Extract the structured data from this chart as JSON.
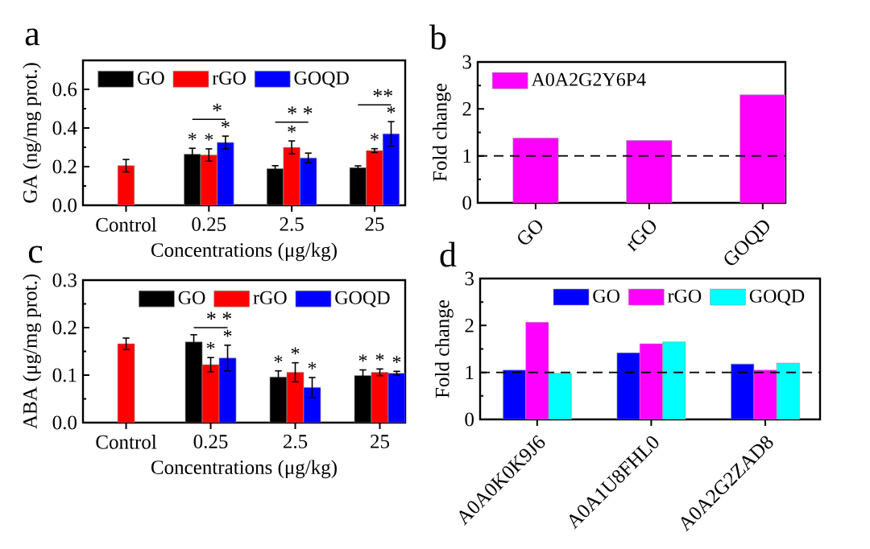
{
  "chart_data": [
    {
      "type": "bar",
      "categories": [
        "Control",
        "0.25",
        "2.5",
        "25"
      ],
      "xlabel": "Concentrations (μg/kg)",
      "ylabel": "GA (ng/mg prot.)",
      "ylim": [
        0,
        0.75
      ],
      "yticks": [
        {
          "value": 0,
          "label": "0.0"
        },
        0.2,
        0.4,
        0.6
      ],
      "legend": "top left",
      "series": [
        {
          "name": "GO",
          "color": "#000000",
          "values": [
            null,
            0.265,
            0.19,
            0.195
          ],
          "errors": [
            null,
            0.03,
            0.015,
            0.009
          ],
          "value_labels": [
            null,
            "*",
            null,
            null
          ]
        },
        {
          "name": "rGO",
          "color": "#ff0000",
          "values": [
            0.205,
            0.26,
            0.3,
            0.283
          ],
          "errors": [
            0.032,
            0.032,
            0.033,
            0.01
          ],
          "value_labels": [
            null,
            "*",
            "*",
            "*"
          ]
        },
        {
          "name": "GOQD",
          "color": "#0000ff",
          "values": [
            null,
            0.325,
            0.245,
            0.37
          ],
          "errors": [
            null,
            0.033,
            0.025,
            0.063
          ],
          "value_labels": [
            null,
            "*",
            null,
            "*"
          ]
        }
      ],
      "annotations": [
        "a",
        "*",
        "* *",
        "**"
      ]
    },
    {
      "type": "bar",
      "categories": [
        "GO",
        "rGO",
        "GOQD"
      ],
      "ylabel": "Fold change",
      "ylim": [
        0,
        3
      ],
      "yticks": [
        0,
        1,
        2,
        3
      ],
      "legend": "top left",
      "series": [
        {
          "name": "A0A2G2Y6P4",
          "color": "#ff00ff",
          "values": [
            1.38,
            1.33,
            2.3
          ]
        }
      ],
      "ref_lines": [
        {
          "axis": "y",
          "value": 1,
          "line_style": "dashed"
        }
      ],
      "annotations": [
        "b"
      ]
    },
    {
      "type": "bar",
      "categories": [
        "Control",
        "0.25",
        "2.5",
        "25"
      ],
      "xlabel": "Concentrations (μg/kg)",
      "ylabel": "ABA (μg/mg prot.)",
      "ylim": [
        0,
        0.3
      ],
      "yticks": [
        {
          "value": 0,
          "label": "0.0"
        },
        0.1,
        0.2,
        0.3
      ],
      "legend": "top right",
      "series": [
        {
          "name": "GO",
          "color": "#000000",
          "values": [
            null,
            0.17,
            0.096,
            0.099
          ],
          "errors": [
            null,
            0.015,
            0.013,
            0.012
          ],
          "value_labels": [
            null,
            null,
            "*",
            "*"
          ]
        },
        {
          "name": "rGO",
          "color": "#ff0000",
          "values": [
            0.166,
            0.122,
            0.106,
            0.106
          ],
          "errors": [
            0.012,
            0.015,
            0.02,
            0.007
          ],
          "value_labels": [
            null,
            "*",
            "*",
            "*"
          ]
        },
        {
          "name": "GOQD",
          "color": "#0000ff",
          "values": [
            null,
            0.136,
            0.074,
            0.104
          ],
          "errors": [
            null,
            0.027,
            0.021,
            0.004
          ],
          "value_labels": [
            null,
            "*",
            "*",
            "*"
          ]
        }
      ],
      "annotations": [
        "c",
        "* *"
      ]
    },
    {
      "type": "bar",
      "categories": [
        "A0A0K0K9J6",
        "A0A1U8FHL0",
        "A0A2G2ZAD8"
      ],
      "ylabel": "Fold change",
      "ylim": [
        0,
        3
      ],
      "yticks": [
        0,
        1,
        2,
        3
      ],
      "legend": "top right",
      "series": [
        {
          "name": "GO",
          "color": "#0000ff",
          "values": [
            1.05,
            1.42,
            1.18
          ]
        },
        {
          "name": "rGO",
          "color": "#ff00ff",
          "values": [
            2.07,
            1.61,
            1.05
          ]
        },
        {
          "name": "GOQD",
          "color": "#00ffff",
          "values": [
            0.98,
            1.65,
            1.2
          ]
        }
      ],
      "ref_lines": [
        {
          "axis": "y",
          "value": 1,
          "line_style": "dashed"
        }
      ],
      "annotations": [
        "d"
      ]
    }
  ]
}
